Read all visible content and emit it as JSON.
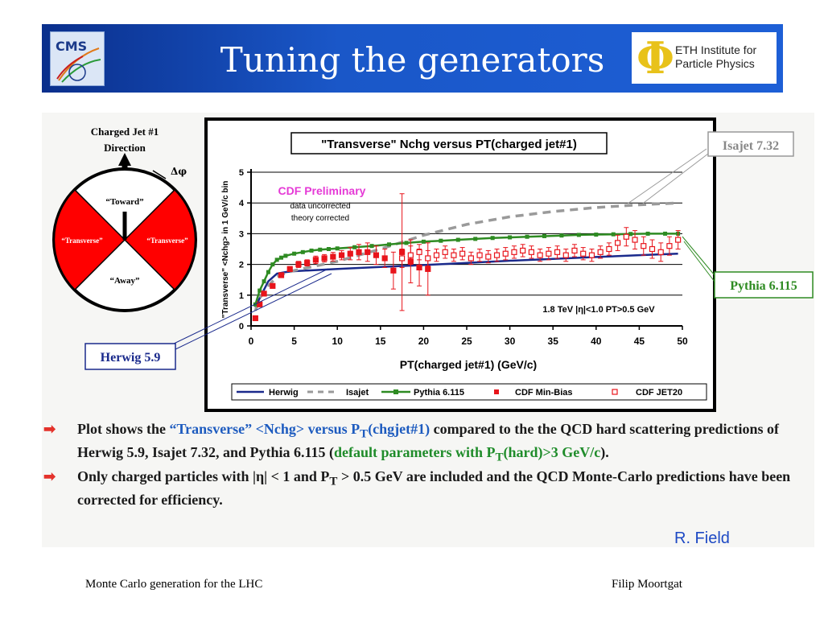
{
  "header": {
    "title": "Tuning the generators",
    "cms_logo_text": "CMS",
    "eth_logo_text_line1": "ETH Institute for",
    "eth_logo_text_line2": "Particle Physics",
    "colors": {
      "banner": "#1a57c8",
      "title": "#ffffff"
    }
  },
  "diagram": {
    "direction_label_1": "Charged Jet #1",
    "direction_label_2": "Direction",
    "delta_phi": "Δφ",
    "toward": "“Toward”",
    "transverse_left": "“Transverse”",
    "transverse_right": "“Transverse”",
    "away": "“Away”",
    "colors": {
      "transverse_fill": "#ff0000"
    }
  },
  "chart_data": {
    "type": "line",
    "title": "\"Transverse\" Nchg versus PT(charged jet#1)",
    "xlabel": "PT(charged jet#1)  (GeV/c)",
    "ylabel": "\"Transverse\" <Nchg> in 1 GeV/c bin",
    "xlim": [
      0,
      50
    ],
    "ylim": [
      0,
      5
    ],
    "x_ticks": [
      "0",
      "5",
      "10",
      "15",
      "20",
      "25",
      "30",
      "35",
      "40",
      "45",
      "50"
    ],
    "y_ticks": [
      "0",
      "1",
      "2",
      "3",
      "4",
      "5"
    ],
    "grid": "horizontal",
    "annotations": {
      "preliminary": "CDF Preliminary",
      "note1": "data uncorrected",
      "note2": "theory corrected",
      "cuts": "1.8 TeV |η|<1.0 PT>0.5 GeV"
    },
    "callouts": {
      "isajet": "Isajet 7.32",
      "pythia": "Pythia 6.115",
      "herwig": "Herwig 5.9"
    },
    "legend_position": "bottom",
    "series": [
      {
        "name": "Herwig",
        "style": "line",
        "color": "#1a2a8c",
        "x": [
          0.5,
          1,
          2,
          3,
          4,
          5,
          10,
          15,
          20,
          25,
          30,
          35,
          40,
          45,
          49.5
        ],
        "y": [
          0.6,
          0.9,
          1.45,
          1.7,
          1.75,
          1.78,
          1.85,
          1.92,
          1.98,
          2.05,
          2.12,
          2.18,
          2.24,
          2.3,
          2.35
        ]
      },
      {
        "name": "Isajet",
        "style": "dashed",
        "color": "#9a9a9a",
        "x": [
          0.5,
          1,
          2,
          3,
          4,
          5,
          10,
          15,
          20,
          25,
          30,
          35,
          40,
          45,
          49.5
        ],
        "y": [
          0.5,
          0.9,
          1.3,
          1.6,
          1.72,
          1.8,
          2.1,
          2.5,
          2.95,
          3.3,
          3.55,
          3.72,
          3.85,
          3.94,
          4.0
        ]
      },
      {
        "name": "Pythia 6.115",
        "style": "line-square",
        "color": "#2e8b22",
        "x": [
          0.5,
          1,
          1.5,
          2,
          2.5,
          3,
          3.5,
          4,
          5,
          6,
          7,
          8,
          9,
          10,
          12,
          14,
          16,
          18,
          20,
          22,
          24,
          26,
          28,
          30,
          32,
          34,
          36,
          38,
          40,
          42,
          44,
          46,
          48,
          49.5
        ],
        "y": [
          0.7,
          1.15,
          1.45,
          1.75,
          2.0,
          2.15,
          2.22,
          2.28,
          2.35,
          2.4,
          2.45,
          2.48,
          2.5,
          2.52,
          2.56,
          2.6,
          2.65,
          2.7,
          2.74,
          2.77,
          2.8,
          2.83,
          2.86,
          2.88,
          2.9,
          2.92,
          2.94,
          2.96,
          2.97,
          2.98,
          2.99,
          3.0,
          3.0,
          3.0
        ]
      },
      {
        "name": "CDF Min-Bias",
        "style": "filled-square",
        "color": "#e8141b",
        "x": [
          0.5,
          1,
          1.5,
          2.5,
          3.5,
          4.5,
          5.5,
          6.5,
          7.5,
          8.5,
          9.5,
          10.5,
          11.5,
          12.5,
          13.5,
          14.5,
          15.5,
          16.5,
          17.5,
          18.5,
          19.5,
          20.5
        ],
        "y": [
          0.25,
          0.7,
          1.05,
          1.3,
          1.65,
          1.85,
          2.0,
          2.05,
          2.15,
          2.2,
          2.25,
          2.3,
          2.35,
          2.4,
          2.4,
          2.3,
          2.2,
          1.8,
          2.4,
          2.1,
          1.9,
          1.85
        ],
        "yerr": [
          0.02,
          0.04,
          0.05,
          0.06,
          0.08,
          0.08,
          0.1,
          0.1,
          0.12,
          0.12,
          0.14,
          0.15,
          0.2,
          0.25,
          0.3,
          0.3,
          0.3,
          0.6,
          1.9,
          0.7,
          0.6,
          0.85
        ]
      },
      {
        "name": "CDF JET20",
        "style": "open-square",
        "color": "#e8141b",
        "x": [
          17.5,
          18.5,
          19.5,
          20.5,
          21.5,
          22.5,
          23.5,
          24.5,
          25.5,
          26.5,
          27.5,
          28.5,
          29.5,
          30.5,
          31.5,
          32.5,
          33.5,
          34.5,
          35.5,
          36.5,
          37.5,
          38.5,
          39.5,
          40.5,
          41.5,
          42.5,
          43.5,
          44.5,
          45.5,
          46.5,
          47.5,
          48.5,
          49.5
        ],
        "y": [
          2.2,
          2.3,
          2.4,
          2.2,
          2.3,
          2.4,
          2.3,
          2.35,
          2.2,
          2.3,
          2.25,
          2.3,
          2.35,
          2.4,
          2.45,
          2.4,
          2.3,
          2.35,
          2.4,
          2.3,
          2.45,
          2.35,
          2.3,
          2.4,
          2.5,
          2.7,
          2.9,
          2.8,
          2.6,
          2.5,
          2.4,
          2.6,
          2.8
        ],
        "yerr": [
          0.3,
          0.3,
          0.25,
          0.25,
          0.2,
          0.2,
          0.2,
          0.2,
          0.2,
          0.2,
          0.2,
          0.2,
          0.2,
          0.2,
          0.2,
          0.2,
          0.2,
          0.2,
          0.2,
          0.2,
          0.2,
          0.2,
          0.2,
          0.2,
          0.2,
          0.25,
          0.3,
          0.3,
          0.3,
          0.3,
          0.3,
          0.3,
          0.3
        ]
      }
    ]
  },
  "bullets": [
    {
      "pre": "Plot shows the ",
      "blue": "“Transverse” <Nchg> versus P",
      "blue_sub": "T",
      "blue_post": "(chgjet#1)",
      "mid": " compared to the the QCD hard scattering predictions of Herwig 5.9, Isajet 7.32, and Pythia 6.115 (",
      "green": "default parameters with P",
      "green_sub": "T",
      "green_post": "(hard)>3 GeV/c",
      "post": ")."
    },
    {
      "pre": "Only charged particles with |η| < 1 and P",
      "sub": "T",
      "post": " > 0.5 GeV are included and the QCD Monte-Carlo predictions have been corrected for efficiency."
    }
  ],
  "credit": "R. Field",
  "footer": {
    "left": "Monte Carlo generation for the LHC",
    "right": "Filip Moortgat"
  }
}
